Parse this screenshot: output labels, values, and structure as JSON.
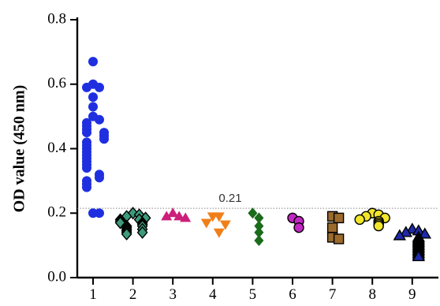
{
  "chart_data": {
    "type": "scatter",
    "ylabel": "OD value (450 nm)",
    "xlabel": "",
    "ylim": [
      0,
      0.8
    ],
    "yticks": [
      0.0,
      0.2,
      0.4,
      0.6,
      0.8
    ],
    "ytick_labels": [
      "0.0",
      "0.2",
      "0.4",
      "0.6",
      "0.8"
    ],
    "categories": [
      "1",
      "2",
      "3",
      "4",
      "5",
      "6",
      "7",
      "8",
      "9"
    ],
    "threshold": {
      "value": 0.215,
      "label": "0.21"
    },
    "grid": false,
    "legend": "none",
    "series": [
      {
        "category": "1",
        "marker": "circle",
        "color": "#1f2fe0",
        "outline": "none",
        "values": [
          0.67,
          0.6,
          0.59,
          0.59,
          0.56,
          0.53,
          0.5,
          0.49,
          0.48,
          0.47,
          0.46,
          0.45,
          0.45,
          0.44,
          0.43,
          0.42,
          0.41,
          0.4,
          0.39,
          0.38,
          0.37,
          0.36,
          0.35,
          0.34,
          0.32,
          0.31,
          0.3,
          0.29,
          0.28,
          0.2,
          0.2
        ]
      },
      {
        "category": "2",
        "marker": "diamond",
        "color": "#3d9b7a",
        "outline": "#000000",
        "values": [
          0.2,
          0.195,
          0.19,
          0.185,
          0.18,
          0.18,
          0.175,
          0.17,
          0.17,
          0.165,
          0.16,
          0.16,
          0.155,
          0.15,
          0.15,
          0.145,
          0.14,
          0.14,
          0.135
        ]
      },
      {
        "category": "3",
        "marker": "triangle-up",
        "color": "#cc1f7a",
        "outline": "none",
        "values": [
          0.2,
          0.19,
          0.19,
          0.185
        ]
      },
      {
        "category": "4",
        "marker": "triangle-down",
        "color": "#f07f1a",
        "outline": "none",
        "values": [
          0.19,
          0.19,
          0.17,
          0.165,
          0.14
        ]
      },
      {
        "category": "5",
        "marker": "diamond-filled",
        "color": "#1a6b1a",
        "outline": "none",
        "values": [
          0.2,
          0.185,
          0.16,
          0.14,
          0.115
        ]
      },
      {
        "category": "6",
        "marker": "circle",
        "color": "#c427c4",
        "outline": "#000000",
        "values": [
          0.185,
          0.175,
          0.155
        ]
      },
      {
        "category": "7",
        "marker": "square",
        "color": "#9b6b2e",
        "outline": "#000000",
        "values": [
          0.19,
          0.185,
          0.155,
          0.125,
          0.12
        ]
      },
      {
        "category": "8",
        "marker": "circle",
        "color": "#f2e62a",
        "outline": "#000000",
        "values": [
          0.2,
          0.195,
          0.19,
          0.185,
          0.18,
          0.175,
          0.17,
          0.165,
          0.16
        ]
      },
      {
        "category": "9",
        "marker": "triangle-up",
        "color": "#1e2aa8",
        "outline": "#000000",
        "values": [
          0.15,
          0.145,
          0.14,
          0.135,
          0.13,
          0.125,
          0.12,
          0.115,
          0.11,
          0.105,
          0.1,
          0.095,
          0.09,
          0.085,
          0.08,
          0.075,
          0.07,
          0.065
        ]
      }
    ]
  }
}
